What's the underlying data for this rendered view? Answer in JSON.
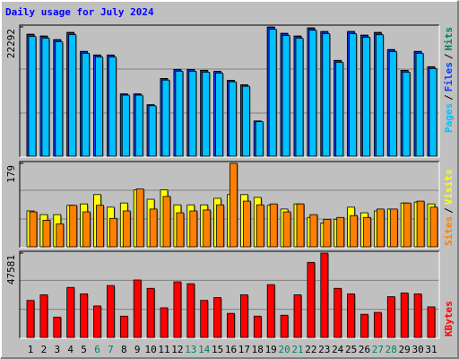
{
  "title": "Daily usage for July 2024",
  "legend_separator": "/",
  "chart_data": [
    {
      "type": "bar",
      "ylim": [
        0,
        22292
      ],
      "yticks": [
        22292
      ],
      "series": [
        {
          "name": "Hits",
          "color": "#00805c",
          "values": [
            21045,
            20733,
            20110,
            21357,
            18083,
            17459,
            17459,
            10756,
            10756,
            8886,
            13406,
            14965,
            14965,
            14809,
            14653,
            13094,
            12315,
            6080,
            22292,
            21200,
            20733,
            22136,
            21512,
            16524,
            21512,
            20889,
            21357,
            18395,
            14809,
            18083,
            15433
          ]
        },
        {
          "name": "Files",
          "color": "#0040ff",
          "values": [
            20940,
            20630,
            20010,
            21250,
            17990,
            17370,
            17370,
            10700,
            10700,
            8840,
            13340,
            14890,
            14890,
            14730,
            14580,
            13030,
            12250,
            6050,
            22180,
            21090,
            20630,
            22020,
            21400,
            16440,
            21400,
            20780,
            21250,
            18300,
            14730,
            17990,
            15350
          ]
        },
        {
          "name": "Pages",
          "color": "#00c0ff",
          "values": [
            20650,
            20340,
            19720,
            20950,
            17730,
            17110,
            17110,
            10520,
            10520,
            8690,
            13120,
            14650,
            14650,
            14490,
            14340,
            12820,
            12050,
            5950,
            21880,
            20800,
            20340,
            21730,
            21110,
            16200,
            21110,
            20500,
            20950,
            18030,
            14490,
            17730,
            15100
          ]
        }
      ]
    },
    {
      "type": "bar",
      "ylim": [
        0,
        179
      ],
      "yticks": [
        179
      ],
      "series": [
        {
          "name": "Visits",
          "color": "#ffff00",
          "values": [
            77,
            69,
            69,
            89,
            92,
            112,
            85,
            94,
            122,
            102,
            122,
            90,
            90,
            90,
            104,
            112,
            112,
            106,
            89,
            81,
            92,
            63,
            51,
            59,
            85,
            73,
            77,
            81,
            94,
            96,
            92
          ]
        },
        {
          "name": "Sites",
          "color": "#ff8000",
          "values": [
            75,
            57,
            49,
            89,
            75,
            89,
            61,
            77,
            124,
            81,
            108,
            73,
            77,
            79,
            90,
            179,
            98,
            90,
            92,
            75,
            92,
            69,
            59,
            63,
            67,
            63,
            81,
            81,
            94,
            98,
            85
          ]
        }
      ]
    },
    {
      "type": "bar",
      "ylim": [
        0,
        47581
      ],
      "yticks": [
        47581
      ],
      "categories": [
        "1",
        "2",
        "3",
        "4",
        "5",
        "6",
        "7",
        "8",
        "9",
        "10",
        "11",
        "12",
        "13",
        "14",
        "15",
        "16",
        "17",
        "18",
        "19",
        "20",
        "21",
        "22",
        "23",
        "24",
        "25",
        "26",
        "27",
        "28",
        "29",
        "30",
        "31"
      ],
      "category_colors": [
        "#000000",
        "#000000",
        "#000000",
        "#000000",
        "#000000",
        "#00805c",
        "#00805c",
        "#000000",
        "#000000",
        "#000000",
        "#000000",
        "#000000",
        "#00805c",
        "#00805c",
        "#000000",
        "#000000",
        "#000000",
        "#000000",
        "#000000",
        "#00805c",
        "#00805c",
        "#000000",
        "#000000",
        "#000000",
        "#000000",
        "#000000",
        "#00805c",
        "#00805c",
        "#000000",
        "#000000",
        "#000000"
      ],
      "series": [
        {
          "name": "KBytes",
          "color": "#ff0000",
          "values": [
            20915,
            24052,
            11503,
            28235,
            24575,
            17777,
            29280,
            12026,
            32417,
            27712,
            16732,
            31372,
            30326,
            20915,
            22483,
            13594,
            24052,
            12026,
            29803,
            12549,
            24052,
            42352,
            47581,
            27712,
            24575,
            13072,
            14117,
            23006,
            25097,
            24575,
            17254
          ]
        }
      ]
    }
  ]
}
